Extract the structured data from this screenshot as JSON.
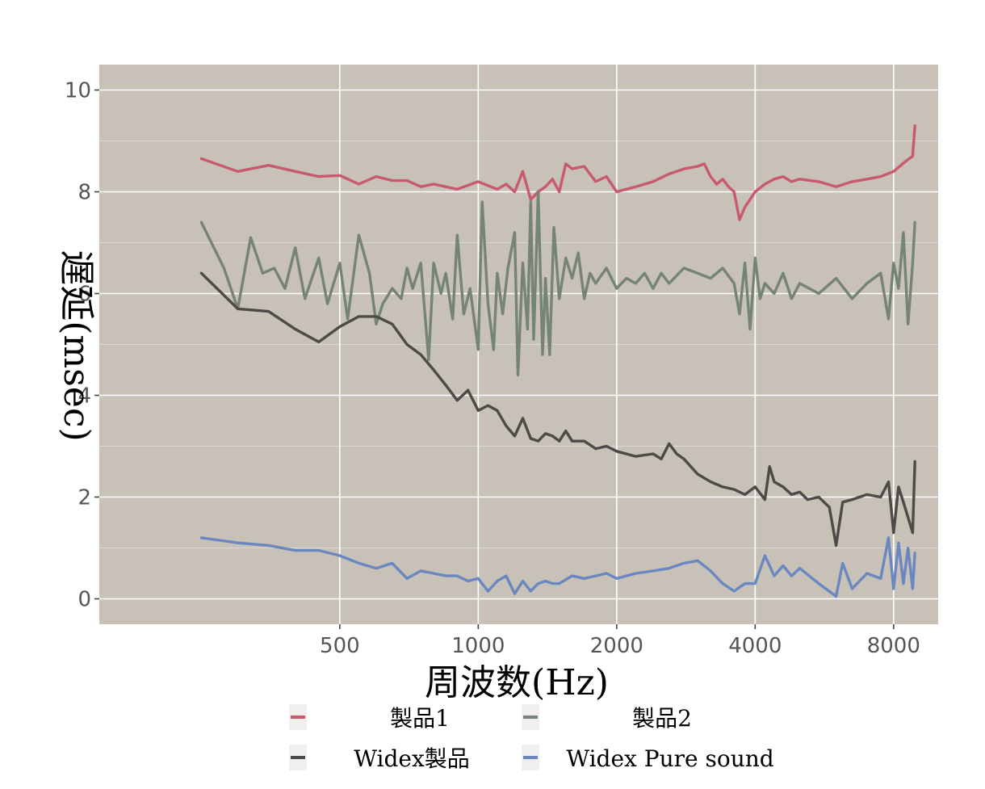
{
  "chart_data": {
    "type": "line",
    "xlabel": "周波数(Hz)",
    "ylabel": "遅延(msec)",
    "x_scale": "log",
    "xlim": [
      150,
      10000
    ],
    "ylim": [
      -0.5,
      10.5
    ],
    "x_ticks": [
      500,
      1000,
      2000,
      4000,
      8000
    ],
    "x_tick_labels": [
      "500",
      "1000",
      "2000",
      "4000",
      "8000"
    ],
    "y_ticks": [
      0,
      2,
      4,
      6,
      8,
      10
    ],
    "y_tick_labels": [
      "0",
      "2",
      "4",
      "6",
      "8",
      "10"
    ],
    "grid": true,
    "background": "#c8c1b8",
    "legend_position": "bottom",
    "series": [
      {
        "name": "製品1",
        "color": "#c85a6e",
        "x": [
          250,
          300,
          350,
          400,
          450,
          500,
          550,
          600,
          650,
          700,
          750,
          800,
          900,
          1000,
          1100,
          1150,
          1200,
          1250,
          1300,
          1350,
          1400,
          1450,
          1500,
          1550,
          1600,
          1700,
          1800,
          1900,
          2000,
          2200,
          2400,
          2600,
          2800,
          3000,
          3100,
          3200,
          3300,
          3400,
          3500,
          3600,
          3700,
          3800,
          3900,
          4000,
          4200,
          4400,
          4600,
          4800,
          5000,
          5500,
          6000,
          6500,
          7000,
          7500,
          8000,
          8500,
          8800,
          8900
        ],
        "y": [
          8.65,
          8.4,
          8.52,
          8.4,
          8.3,
          8.32,
          8.15,
          8.3,
          8.22,
          8.22,
          8.1,
          8.15,
          8.05,
          8.2,
          8.05,
          8.15,
          8.0,
          8.4,
          7.85,
          8.0,
          8.1,
          8.25,
          8.0,
          8.55,
          8.45,
          8.5,
          8.2,
          8.3,
          8.0,
          8.1,
          8.2,
          8.35,
          8.45,
          8.5,
          8.55,
          8.3,
          8.15,
          8.25,
          8.1,
          8.0,
          7.45,
          7.7,
          7.85,
          8.0,
          8.15,
          8.25,
          8.3,
          8.2,
          8.25,
          8.2,
          8.1,
          8.2,
          8.25,
          8.3,
          8.4,
          8.6,
          8.7,
          9.3
        ]
      },
      {
        "name": "製品2",
        "color": "#758477",
        "x": [
          250,
          280,
          300,
          320,
          340,
          360,
          380,
          400,
          420,
          450,
          470,
          500,
          520,
          550,
          580,
          600,
          620,
          650,
          680,
          700,
          720,
          750,
          780,
          800,
          830,
          850,
          880,
          900,
          930,
          960,
          1000,
          1020,
          1050,
          1080,
          1100,
          1130,
          1160,
          1200,
          1220,
          1250,
          1280,
          1300,
          1320,
          1350,
          1380,
          1400,
          1430,
          1460,
          1500,
          1550,
          1600,
          1650,
          1700,
          1750,
          1800,
          1900,
          2000,
          2100,
          2200,
          2300,
          2400,
          2500,
          2600,
          2800,
          3000,
          3200,
          3400,
          3600,
          3700,
          3800,
          3900,
          4000,
          4100,
          4200,
          4400,
          4600,
          4800,
          5000,
          5500,
          6000,
          6500,
          7000,
          7500,
          7800,
          8000,
          8200,
          8400,
          8600,
          8800,
          8900
        ],
        "y": [
          7.4,
          6.5,
          5.7,
          7.1,
          6.4,
          6.5,
          6.1,
          6.9,
          5.9,
          6.7,
          5.8,
          6.6,
          5.5,
          7.15,
          6.4,
          5.4,
          5.8,
          6.1,
          5.9,
          6.5,
          6.1,
          6.6,
          4.7,
          6.6,
          6.0,
          6.4,
          5.5,
          7.15,
          5.6,
          6.1,
          4.9,
          7.8,
          5.8,
          4.9,
          6.4,
          5.6,
          6.5,
          7.2,
          4.4,
          6.6,
          5.3,
          7.8,
          5.1,
          8.0,
          4.8,
          6.3,
          4.8,
          7.3,
          5.9,
          6.7,
          6.3,
          6.8,
          5.9,
          6.4,
          6.2,
          6.5,
          6.1,
          6.3,
          6.2,
          6.4,
          6.1,
          6.4,
          6.2,
          6.5,
          6.4,
          6.3,
          6.5,
          6.2,
          5.6,
          6.6,
          5.3,
          6.7,
          5.9,
          6.2,
          6.0,
          6.4,
          5.9,
          6.2,
          6.0,
          6.3,
          5.9,
          6.2,
          6.4,
          5.5,
          6.6,
          6.1,
          7.2,
          5.4,
          6.6,
          7.4
        ]
      },
      {
        "name": "Widex製品",
        "color": "#4d4a48",
        "x": [
          250,
          300,
          350,
          400,
          450,
          500,
          550,
          600,
          650,
          700,
          750,
          800,
          850,
          900,
          950,
          1000,
          1050,
          1100,
          1150,
          1200,
          1250,
          1300,
          1350,
          1400,
          1450,
          1500,
          1550,
          1600,
          1700,
          1800,
          1900,
          2000,
          2200,
          2400,
          2500,
          2600,
          2700,
          2800,
          3000,
          3200,
          3400,
          3600,
          3800,
          4000,
          4200,
          4300,
          4400,
          4600,
          4800,
          5000,
          5200,
          5500,
          5800,
          6000,
          6200,
          6500,
          7000,
          7500,
          7800,
          8000,
          8200,
          8400,
          8600,
          8800,
          8900
        ],
        "y": [
          6.4,
          5.7,
          5.65,
          5.3,
          5.05,
          5.35,
          5.55,
          5.55,
          5.4,
          5.0,
          4.8,
          4.5,
          4.2,
          3.9,
          4.1,
          3.7,
          3.8,
          3.7,
          3.4,
          3.2,
          3.55,
          3.15,
          3.1,
          3.25,
          3.2,
          3.1,
          3.3,
          3.1,
          3.1,
          2.95,
          3.0,
          2.9,
          2.8,
          2.85,
          2.75,
          3.05,
          2.85,
          2.75,
          2.45,
          2.3,
          2.2,
          2.15,
          2.05,
          2.2,
          1.95,
          2.6,
          2.3,
          2.2,
          2.05,
          2.1,
          1.95,
          2.0,
          1.8,
          1.05,
          1.9,
          1.95,
          2.05,
          2.0,
          2.3,
          1.3,
          2.2,
          1.9,
          1.6,
          1.3,
          2.7
        ]
      },
      {
        "name": "Widex Pure sound",
        "color": "#6a87c0",
        "x": [
          250,
          300,
          350,
          400,
          450,
          500,
          550,
          600,
          650,
          700,
          750,
          800,
          850,
          900,
          950,
          1000,
          1050,
          1100,
          1150,
          1200,
          1250,
          1300,
          1350,
          1400,
          1450,
          1500,
          1600,
          1700,
          1800,
          1900,
          2000,
          2200,
          2400,
          2600,
          2800,
          3000,
          3200,
          3400,
          3600,
          3800,
          4000,
          4200,
          4400,
          4600,
          4800,
          5000,
          5500,
          6000,
          6200,
          6500,
          7000,
          7500,
          7800,
          8000,
          8200,
          8400,
          8600,
          8800,
          8900
        ],
        "y": [
          1.2,
          1.1,
          1.05,
          0.95,
          0.95,
          0.85,
          0.7,
          0.6,
          0.7,
          0.4,
          0.55,
          0.5,
          0.45,
          0.45,
          0.35,
          0.4,
          0.15,
          0.35,
          0.45,
          0.1,
          0.35,
          0.15,
          0.3,
          0.35,
          0.3,
          0.3,
          0.45,
          0.4,
          0.45,
          0.5,
          0.4,
          0.5,
          0.55,
          0.6,
          0.7,
          0.75,
          0.55,
          0.3,
          0.15,
          0.3,
          0.3,
          0.85,
          0.45,
          0.65,
          0.45,
          0.6,
          0.3,
          0.05,
          0.7,
          0.2,
          0.5,
          0.4,
          1.2,
          0.2,
          1.1,
          0.3,
          1.0,
          0.2,
          0.9
        ]
      }
    ]
  }
}
